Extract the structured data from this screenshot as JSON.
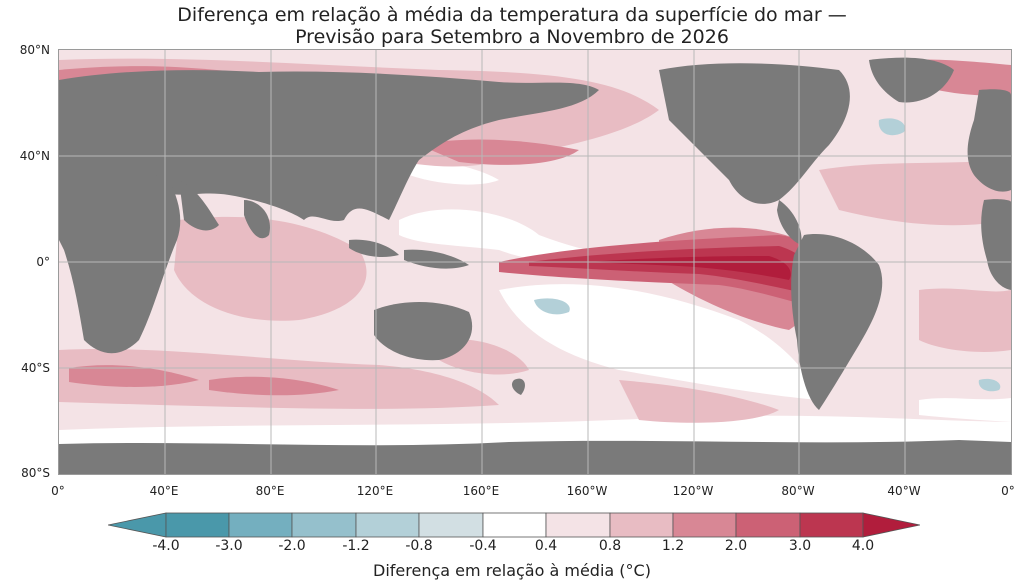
{
  "title": {
    "line1": "Diferença em relação à média da temperatura da superfície do mar —",
    "line2": "Previsão para Setembro a Novembro de 2026"
  },
  "axes": {
    "lat_labels": [
      "80°N",
      "40°N",
      "0°",
      "40°S",
      "80°S"
    ],
    "lon_labels": [
      "0°",
      "40°E",
      "80°E",
      "120°E",
      "160°E",
      "160°W",
      "120°W",
      "80°W",
      "40°W",
      "0°"
    ]
  },
  "colorbar": {
    "ticks": [
      "-4.0",
      "-3.0",
      "-2.0",
      "-1.2",
      "-0.8",
      "-0.4",
      "0.4",
      "0.8",
      "1.2",
      "2.0",
      "3.0",
      "4.0"
    ],
    "colors": [
      "#4a98aa",
      "#74afbf",
      "#95c0cc",
      "#b3d0d8",
      "#d2dfe3",
      "#ffffff",
      "#f4e3e6",
      "#e8bcc3",
      "#d88795",
      "#cc6175",
      "#bc3650",
      "#b11d3c"
    ],
    "title": "Diferença em relação à média (°C)"
  },
  "colors": {
    "land": "#7a7a7a",
    "grid": "#b8b8b8",
    "anomaly_high": "#b11d3c",
    "anomaly_low": "#4a98aa"
  }
}
